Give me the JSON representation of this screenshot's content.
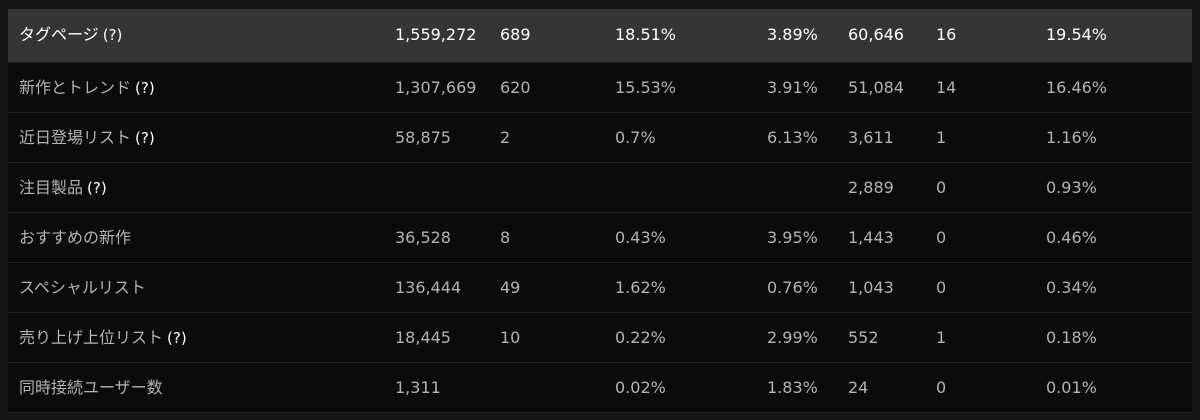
{
  "rows": [
    {
      "label": "タグページ",
      "help": "(?)",
      "values": [
        "1,559,272",
        "689",
        "18.51%",
        "3.89%",
        "60,646",
        "16",
        "19.54%"
      ]
    },
    {
      "label": "新作とトレンド",
      "help": "(?)",
      "values": [
        "1,307,669",
        "620",
        "15.53%",
        "3.91%",
        "51,084",
        "14",
        "16.46%"
      ]
    },
    {
      "label": "近日登場リスト",
      "help": "(?)",
      "values": [
        "58,875",
        "2",
        "0.7%",
        "6.13%",
        "3,611",
        "1",
        "1.16%"
      ]
    },
    {
      "label": "注目製品",
      "help": "(?)",
      "values": [
        "",
        "",
        "",
        "",
        "2,889",
        "0",
        "0.93%"
      ]
    },
    {
      "label": "おすすめの新作",
      "help": "",
      "values": [
        "36,528",
        "8",
        "0.43%",
        "3.95%",
        "1,443",
        "0",
        "0.46%"
      ]
    },
    {
      "label": "スペシャルリスト",
      "help": "",
      "values": [
        "136,444",
        "49",
        "1.62%",
        "0.76%",
        "1,043",
        "0",
        "0.34%"
      ]
    },
    {
      "label": "売り上げ上位リスト",
      "help": "(?)",
      "values": [
        "18,445",
        "10",
        "0.22%",
        "2.99%",
        "552",
        "1",
        "0.18%"
      ]
    },
    {
      "label": "同時接続ユーザー数",
      "help": "",
      "values": [
        "1,311",
        "",
        "0.02%",
        "1.83%",
        "24",
        "0",
        "0.01%"
      ]
    }
  ]
}
